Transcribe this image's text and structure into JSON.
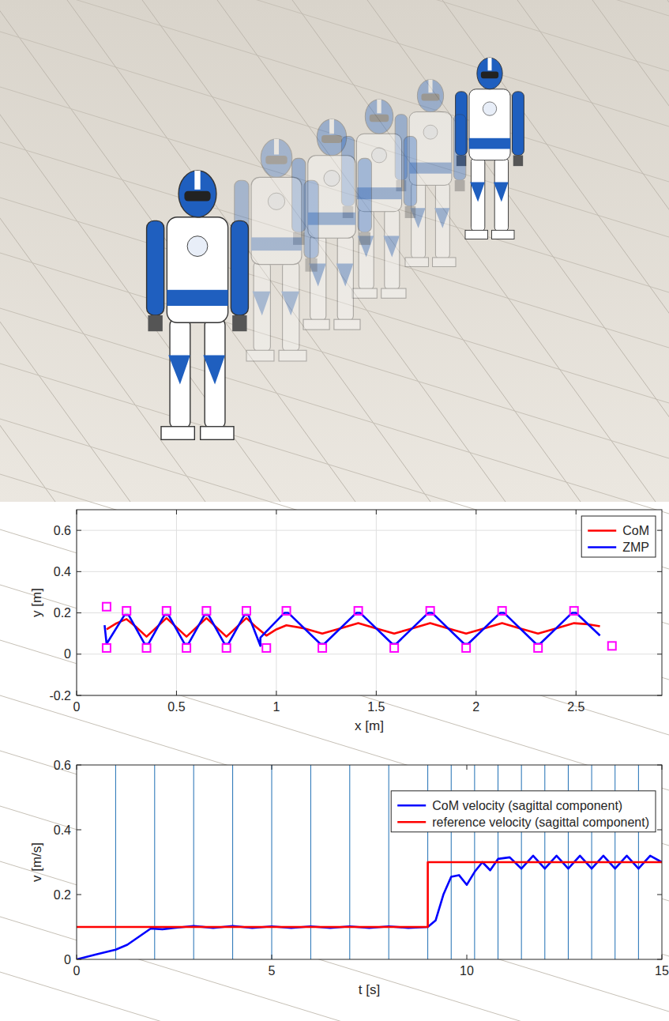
{
  "chart_data": [
    {
      "type": "line",
      "xlabel": "x [m]",
      "ylabel": "y [m]",
      "xlim": [
        0,
        2.93
      ],
      "ylim": [
        -0.2,
        0.7
      ],
      "xticks": [
        0,
        0.5,
        1,
        1.5,
        2,
        2.5
      ],
      "yticks": [
        -0.2,
        0,
        0.2,
        0.4,
        0.6
      ],
      "grid": true,
      "legend": "northeast",
      "series": [
        {
          "name": "CoM",
          "color": "#ff0000",
          "line_style": "solid",
          "x": [
            0.15,
            0.2,
            0.25,
            0.3,
            0.35,
            0.4,
            0.45,
            0.5,
            0.55,
            0.6,
            0.65,
            0.7,
            0.75,
            0.8,
            0.85,
            0.9,
            0.95,
            1.0,
            1.05,
            1.14,
            1.23,
            1.32,
            1.41,
            1.5,
            1.59,
            1.68,
            1.77,
            1.86,
            1.95,
            2.04,
            2.13,
            2.22,
            2.31,
            2.4,
            2.49,
            2.56,
            2.62
          ],
          "values": [
            0.12,
            0.15,
            0.17,
            0.13,
            0.085,
            0.13,
            0.175,
            0.13,
            0.085,
            0.13,
            0.175,
            0.13,
            0.085,
            0.13,
            0.175,
            0.13,
            0.09,
            0.12,
            0.14,
            0.125,
            0.1,
            0.125,
            0.15,
            0.125,
            0.1,
            0.125,
            0.15,
            0.125,
            0.1,
            0.125,
            0.15,
            0.125,
            0.1,
            0.125,
            0.15,
            0.145,
            0.135
          ]
        },
        {
          "name": "ZMP",
          "color": "#0000ff",
          "line_style": "solid",
          "x": [
            0.14,
            0.15,
            0.24,
            0.26,
            0.34,
            0.36,
            0.44,
            0.46,
            0.54,
            0.56,
            0.64,
            0.66,
            0.74,
            0.76,
            0.84,
            0.86,
            0.92,
            0.92,
            1.04,
            1.06,
            1.22,
            1.24,
            1.4,
            1.42,
            1.58,
            1.6,
            1.76,
            1.78,
            1.94,
            1.96,
            2.12,
            2.14,
            2.3,
            2.32,
            2.48,
            2.5,
            2.62
          ],
          "values": [
            0.14,
            0.05,
            0.19,
            0.19,
            0.05,
            0.05,
            0.19,
            0.19,
            0.05,
            0.05,
            0.19,
            0.19,
            0.05,
            0.05,
            0.19,
            0.19,
            0.04,
            0.08,
            0.2,
            0.2,
            0.05,
            0.05,
            0.2,
            0.2,
            0.05,
            0.05,
            0.2,
            0.2,
            0.05,
            0.05,
            0.2,
            0.2,
            0.05,
            0.05,
            0.2,
            0.2,
            0.09
          ]
        },
        {
          "type": "scatter",
          "color": "#ff00ff",
          "marker": "square",
          "x": [
            0.15,
            0.15,
            0.25,
            0.35,
            0.45,
            0.55,
            0.65,
            0.75,
            0.85,
            0.95,
            1.05,
            1.23,
            1.41,
            1.59,
            1.77,
            1.95,
            2.13,
            2.31,
            2.49,
            2.68
          ],
          "values": [
            0.03,
            0.23,
            0.21,
            0.03,
            0.21,
            0.03,
            0.21,
            0.03,
            0.21,
            0.03,
            0.21,
            0.03,
            0.21,
            0.03,
            0.21,
            0.03,
            0.21,
            0.03,
            0.21,
            0.04
          ]
        }
      ]
    },
    {
      "type": "line",
      "xlabel": "t [s]",
      "ylabel": "v [m/s]",
      "xlim": [
        0,
        15
      ],
      "ylim": [
        0,
        0.6
      ],
      "xticks": [
        0,
        5,
        10,
        15
      ],
      "yticks": [
        0,
        0.2,
        0.4,
        0.6
      ],
      "grid": false,
      "legend": "northeast",
      "step_times": [
        1,
        2,
        3,
        4,
        5,
        6,
        7,
        8,
        9,
        9.6,
        10.2,
        10.8,
        11.4,
        12,
        12.6,
        13.2,
        13.8,
        14.4
      ],
      "series": [
        {
          "name": "CoM velocity (sagittal component)",
          "color": "#0000ff",
          "line_style": "solid",
          "x": [
            0,
            0.5,
            1,
            1.3,
            1.6,
            1.9,
            2.2,
            2.5,
            3,
            3.5,
            4,
            4.5,
            5,
            5.5,
            6,
            6.5,
            7,
            7.5,
            8,
            8.5,
            9,
            9.2,
            9.4,
            9.6,
            9.8,
            10,
            10.2,
            10.4,
            10.6,
            10.8,
            11.1,
            11.4,
            11.7,
            12,
            12.3,
            12.6,
            12.9,
            13.2,
            13.5,
            13.8,
            14.1,
            14.4,
            14.7,
            15
          ],
          "values": [
            0,
            0.015,
            0.03,
            0.045,
            0.07,
            0.095,
            0.093,
            0.097,
            0.103,
            0.097,
            0.103,
            0.097,
            0.102,
            0.097,
            0.102,
            0.097,
            0.102,
            0.097,
            0.102,
            0.097,
            0.1,
            0.12,
            0.2,
            0.255,
            0.26,
            0.23,
            0.27,
            0.3,
            0.275,
            0.31,
            0.315,
            0.28,
            0.32,
            0.28,
            0.32,
            0.28,
            0.32,
            0.28,
            0.32,
            0.28,
            0.32,
            0.28,
            0.32,
            0.3
          ]
        },
        {
          "name": "reference velocity (sagittal component)",
          "color": "#ff0000",
          "line_style": "solid",
          "x": [
            0,
            9,
            9,
            15
          ],
          "values": [
            0.1,
            0.1,
            0.3,
            0.3
          ]
        }
      ]
    }
  ]
}
